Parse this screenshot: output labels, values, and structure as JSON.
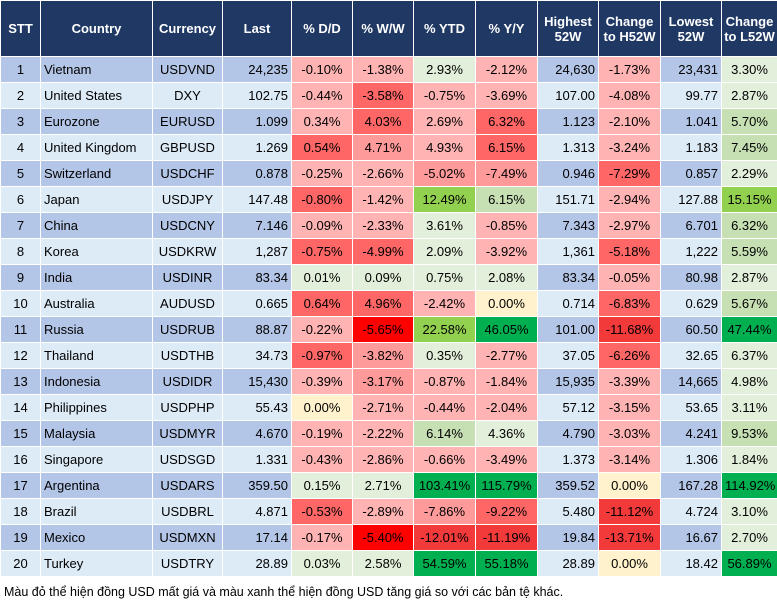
{
  "headers": [
    "STT",
    "Country",
    "Currency",
    "Last",
    "% D/D",
    "% W/W",
    "% YTD",
    "% Y/Y",
    "Highest 52W",
    "Change to H52W",
    "Lowest 52W",
    "Change to L52W"
  ],
  "rows": [
    {
      "stt": "1",
      "country": "Vietnam",
      "currency": "USDVND",
      "last": "24,235",
      "dd": "-0.10%",
      "ww": "-1.38%",
      "ytd": "2.93%",
      "yy": "-2.12%",
      "high": "24,630",
      "chh": "-1.73%",
      "low": "23,431",
      "chl": "3.30%",
      "colors": [
        "r1",
        "r1",
        "g0",
        "r1",
        "r1",
        "g0"
      ]
    },
    {
      "stt": "2",
      "country": "United States",
      "currency": "DXY",
      "last": "102.75",
      "dd": "-0.44%",
      "ww": "-3.58%",
      "ytd": "-0.75%",
      "yy": "-3.69%",
      "high": "107.00",
      "chh": "-4.08%",
      "low": "99.77",
      "chl": "2.87%",
      "colors": [
        "r1",
        "r2",
        "r1",
        "r1",
        "r1",
        "g0"
      ]
    },
    {
      "stt": "3",
      "country": "Eurozone",
      "currency": "EURUSD",
      "last": "1.099",
      "dd": "0.34%",
      "ww": "4.03%",
      "ytd": "2.69%",
      "yy": "6.32%",
      "high": "1.123",
      "chh": "-2.10%",
      "low": "1.041",
      "chl": "5.70%",
      "colors": [
        "r1",
        "r2",
        "r1",
        "r2",
        "r1",
        "g1"
      ]
    },
    {
      "stt": "4",
      "country": "United Kingdom",
      "currency": "GBPUSD",
      "last": "1.269",
      "dd": "0.54%",
      "ww": "4.71%",
      "ytd": "4.93%",
      "yy": "6.15%",
      "high": "1.313",
      "chh": "-3.24%",
      "low": "1.183",
      "chl": "7.45%",
      "colors": [
        "r2",
        "r1b",
        "r1",
        "r2",
        "r1",
        "g1"
      ]
    },
    {
      "stt": "5",
      "country": "Switzerland",
      "currency": "USDCHF",
      "last": "0.878",
      "dd": "-0.25%",
      "ww": "-2.66%",
      "ytd": "-5.02%",
      "yy": "-7.49%",
      "high": "0.946",
      "chh": "-7.29%",
      "low": "0.857",
      "chl": "2.29%",
      "colors": [
        "r1",
        "r1",
        "r1b",
        "r1b",
        "r2",
        "g0"
      ]
    },
    {
      "stt": "6",
      "country": "Japan",
      "currency": "USDJPY",
      "last": "147.48",
      "dd": "-0.80%",
      "ww": "-1.42%",
      "ytd": "12.49%",
      "yy": "6.15%",
      "high": "151.71",
      "chh": "-2.94%",
      "low": "127.88",
      "chl": "15.15%",
      "colors": [
        "r2",
        "r1",
        "g2",
        "g1",
        "r1",
        "g2"
      ]
    },
    {
      "stt": "7",
      "country": "China",
      "currency": "USDCNY",
      "last": "7.146",
      "dd": "-0.09%",
      "ww": "-2.33%",
      "ytd": "3.61%",
      "yy": "-0.85%",
      "high": "7.343",
      "chh": "-2.97%",
      "low": "6.701",
      "chl": "6.32%",
      "colors": [
        "r1",
        "r1",
        "g0",
        "r1",
        "r1",
        "g1"
      ]
    },
    {
      "stt": "8",
      "country": "Korea",
      "currency": "USDKRW",
      "last": "1,287",
      "dd": "-0.75%",
      "ww": "-4.99%",
      "ytd": "2.09%",
      "yy": "-3.92%",
      "high": "1,361",
      "chh": "-5.18%",
      "low": "1,222",
      "chl": "5.59%",
      "colors": [
        "r2",
        "r2",
        "g0",
        "r1",
        "r2",
        "g1"
      ]
    },
    {
      "stt": "9",
      "country": "India",
      "currency": "USDINR",
      "last": "83.34",
      "dd": "0.01%",
      "ww": "0.09%",
      "ytd": "0.75%",
      "yy": "2.08%",
      "high": "83.34",
      "chh": "-0.05%",
      "low": "80.98",
      "chl": "2.87%",
      "colors": [
        "g0",
        "g0",
        "g0",
        "g0",
        "r1",
        "g0"
      ]
    },
    {
      "stt": "10",
      "country": "Australia",
      "currency": "AUDUSD",
      "last": "0.665",
      "dd": "0.64%",
      "ww": "4.96%",
      "ytd": "-2.42%",
      "yy": "0.00%",
      "high": "0.714",
      "chh": "-6.83%",
      "low": "0.629",
      "chl": "5.67%",
      "colors": [
        "r2",
        "r2",
        "r1",
        "y",
        "r2",
        "g1"
      ]
    },
    {
      "stt": "11",
      "country": "Russia",
      "currency": "USDRUB",
      "last": "88.87",
      "dd": "-0.22%",
      "ww": "-5.65%",
      "ytd": "22.58%",
      "yy": "46.05%",
      "high": "101.00",
      "chh": "-11.68%",
      "low": "60.50",
      "chl": "47.44%",
      "colors": [
        "r1",
        "r4",
        "g2",
        "g3",
        "r3",
        "g3"
      ]
    },
    {
      "stt": "12",
      "country": "Thailand",
      "currency": "USDTHB",
      "last": "34.73",
      "dd": "-0.97%",
      "ww": "-3.82%",
      "ytd": "0.35%",
      "yy": "-2.77%",
      "high": "37.05",
      "chh": "-6.26%",
      "low": "32.65",
      "chl": "6.37%",
      "colors": [
        "r2",
        "r1b",
        "g0",
        "r1",
        "r2",
        "g0"
      ]
    },
    {
      "stt": "13",
      "country": "Indonesia",
      "currency": "USDIDR",
      "last": "15,430",
      "dd": "-0.39%",
      "ww": "-3.17%",
      "ytd": "-0.87%",
      "yy": "-1.84%",
      "high": "15,935",
      "chh": "-3.39%",
      "low": "14,665",
      "chl": "4.98%",
      "colors": [
        "r1",
        "r1b",
        "r1",
        "r1",
        "r1",
        "g0"
      ]
    },
    {
      "stt": "14",
      "country": "Philippines",
      "currency": "USDPHP",
      "last": "55.43",
      "dd": "0.00%",
      "ww": "-2.71%",
      "ytd": "-0.44%",
      "yy": "-2.04%",
      "high": "57.12",
      "chh": "-3.15%",
      "low": "53.65",
      "chl": "3.11%",
      "colors": [
        "y",
        "r1",
        "r1",
        "r1",
        "r1",
        "g0"
      ]
    },
    {
      "stt": "15",
      "country": "Malaysia",
      "currency": "USDMYR",
      "last": "4.670",
      "dd": "-0.19%",
      "ww": "-2.22%",
      "ytd": "6.14%",
      "yy": "4.36%",
      "high": "4.790",
      "chh": "-3.03%",
      "low": "4.241",
      "chl": "9.53%",
      "colors": [
        "r1",
        "r1",
        "g1",
        "g0",
        "r1",
        "g1"
      ]
    },
    {
      "stt": "16",
      "country": "Singapore",
      "currency": "USDSGD",
      "last": "1.331",
      "dd": "-0.43%",
      "ww": "-2.86%",
      "ytd": "-0.66%",
      "yy": "-3.49%",
      "high": "1.373",
      "chh": "-3.14%",
      "low": "1.306",
      "chl": "1.84%",
      "colors": [
        "r1",
        "r1",
        "r1",
        "r1",
        "r1",
        "g0"
      ]
    },
    {
      "stt": "17",
      "country": "Argentina",
      "currency": "USDARS",
      "last": "359.50",
      "dd": "0.15%",
      "ww": "2.71%",
      "ytd": "103.41%",
      "yy": "115.79%",
      "high": "359.52",
      "chh": "0.00%",
      "low": "167.28",
      "chl": "114.92%",
      "colors": [
        "g0",
        "g0",
        "g3",
        "g3",
        "y",
        "g3"
      ]
    },
    {
      "stt": "18",
      "country": "Brazil",
      "currency": "USDBRL",
      "last": "4.871",
      "dd": "-0.53%",
      "ww": "-2.89%",
      "ytd": "-7.86%",
      "yy": "-9.22%",
      "high": "5.480",
      "chh": "-11.12%",
      "low": "4.724",
      "chl": "3.10%",
      "colors": [
        "r2",
        "r1",
        "r1b",
        "r2",
        "r3",
        "g0"
      ]
    },
    {
      "stt": "19",
      "country": "Mexico",
      "currency": "USDMXN",
      "last": "17.14",
      "dd": "-0.17%",
      "ww": "-5.40%",
      "ytd": "-12.01%",
      "yy": "-11.19%",
      "high": "19.84",
      "chh": "-13.71%",
      "low": "16.67",
      "chl": "2.70%",
      "colors": [
        "r1",
        "r4",
        "r3",
        "r3",
        "r3",
        "g0"
      ]
    },
    {
      "stt": "20",
      "country": "Turkey",
      "currency": "USDTRY",
      "last": "28.89",
      "dd": "0.03%",
      "ww": "2.58%",
      "ytd": "54.59%",
      "yy": "55.18%",
      "high": "28.89",
      "chh": "0.00%",
      "low": "18.42",
      "chl": "56.89%",
      "colors": [
        "g0",
        "g0",
        "g3",
        "g3",
        "y",
        "g3"
      ]
    }
  ],
  "note": "Màu đỏ thể hiện đồng USD mất giá và màu xanh thể hiện đồng USD tăng giá so với các bản tệ khác."
}
